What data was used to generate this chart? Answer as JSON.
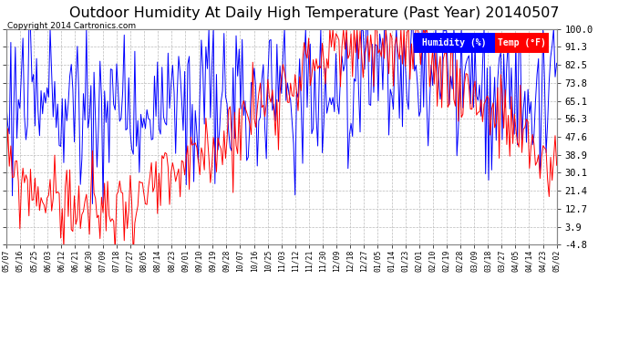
{
  "title": "Outdoor Humidity At Daily High Temperature (Past Year) 20140507",
  "copyright": "Copyright 2014 Cartronics.com",
  "legend_labels": [
    "Humidity (%)",
    "Temp (°F)"
  ],
  "ytick_values": [
    100.0,
    91.3,
    82.5,
    73.8,
    65.1,
    56.3,
    47.6,
    38.9,
    30.1,
    21.4,
    12.7,
    3.9,
    -4.8
  ],
  "ymin": -4.8,
  "ymax": 100.0,
  "xtick_labels": [
    "05/07",
    "05/16",
    "05/25",
    "06/03",
    "06/12",
    "06/21",
    "06/30",
    "07/09",
    "07/18",
    "07/27",
    "08/05",
    "08/14",
    "08/23",
    "09/01",
    "09/10",
    "09/19",
    "09/28",
    "10/07",
    "10/16",
    "10/25",
    "11/03",
    "11/12",
    "11/21",
    "11/30",
    "12/09",
    "12/18",
    "12/27",
    "01/05",
    "01/14",
    "01/23",
    "02/01",
    "02/10",
    "02/19",
    "02/28",
    "03/09",
    "03/18",
    "03/27",
    "04/05",
    "04/14",
    "04/23",
    "05/02"
  ],
  "background_color": "#ffffff",
  "grid_color": "#bbbbbb",
  "title_fontsize": 11.5,
  "humidity_color": "#0000ff",
  "temp_color": "#ff0000",
  "n_days": 365,
  "fig_width": 6.9,
  "fig_height": 3.75,
  "dpi": 100
}
